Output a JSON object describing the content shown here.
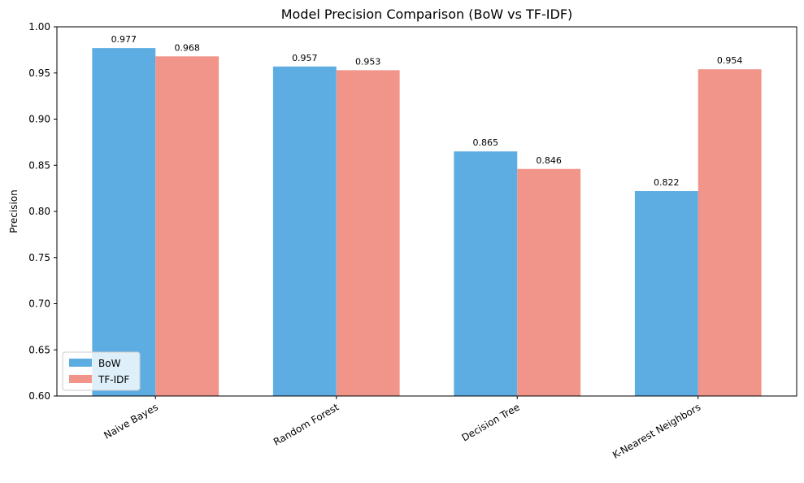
{
  "chart_data": {
    "type": "bar",
    "title": "Model Precision Comparison (BoW vs TF-IDF)",
    "xlabel": "",
    "ylabel": "Precision",
    "categories": [
      "Naive Bayes",
      "Random Forest",
      "Decision Tree",
      "K-Nearest Neighbors"
    ],
    "series": [
      {
        "name": "BoW",
        "values": [
          0.977,
          0.957,
          0.865,
          0.822
        ],
        "labels": [
          "0.977",
          "0.957",
          "0.865",
          "0.822"
        ],
        "color": "#5DADE2"
      },
      {
        "name": "TF-IDF",
        "values": [
          0.968,
          0.953,
          0.846,
          0.954
        ],
        "labels": [
          "0.968",
          "0.953",
          "0.846",
          "0.954"
        ],
        "color": "#F1948A"
      }
    ],
    "ylim": [
      0.6,
      1.0
    ],
    "yticks": [
      0.6,
      0.65,
      0.7,
      0.75,
      0.8,
      0.85,
      0.9,
      0.95,
      1.0
    ],
    "ytick_labels": [
      "0.60",
      "0.65",
      "0.70",
      "0.75",
      "0.80",
      "0.85",
      "0.90",
      "0.95",
      "1.00"
    ],
    "grid": false,
    "legend_position": "lower-left"
  }
}
